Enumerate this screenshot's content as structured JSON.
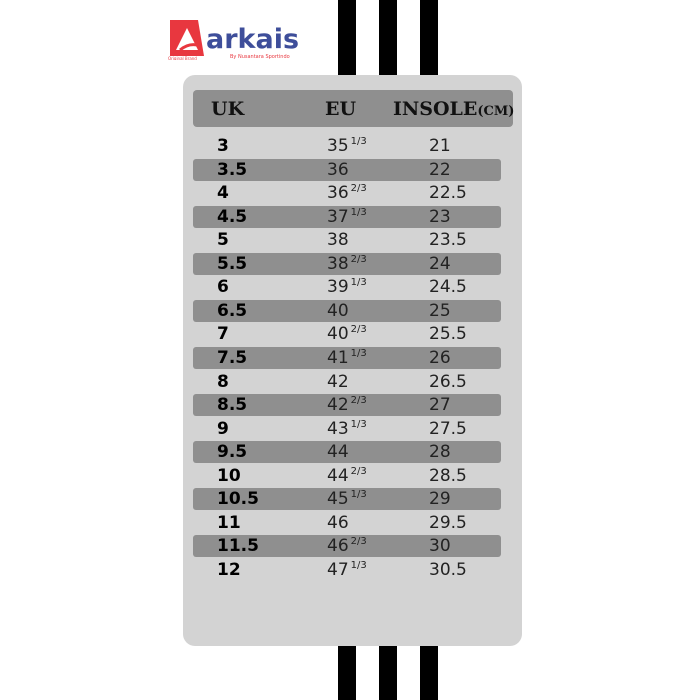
{
  "logo": {
    "name": "arkais",
    "tagline": "By Nusantara Sportindo",
    "subtext": "Original Brand",
    "colors": {
      "mark": "#e8373f",
      "text": "#3e4e9a"
    }
  },
  "header": {
    "uk": "UK",
    "eu": "EU",
    "insole": "INSOLE",
    "insole_unit": "(CM)"
  },
  "rows": [
    {
      "uk": "3",
      "eu": "35",
      "frac": "1/3",
      "insole": "21"
    },
    {
      "uk": "3.5",
      "eu": "36",
      "frac": "",
      "insole": "22"
    },
    {
      "uk": "4",
      "eu": "36",
      "frac": "2/3",
      "insole": "22.5"
    },
    {
      "uk": "4.5",
      "eu": "37",
      "frac": "1/3",
      "insole": "23"
    },
    {
      "uk": "5",
      "eu": "38",
      "frac": "",
      "insole": "23.5"
    },
    {
      "uk": "5.5",
      "eu": "38",
      "frac": "2/3",
      "insole": "24"
    },
    {
      "uk": "6",
      "eu": "39",
      "frac": "1/3",
      "insole": "24.5"
    },
    {
      "uk": "6.5",
      "eu": "40",
      "frac": "",
      "insole": "25"
    },
    {
      "uk": "7",
      "eu": "40",
      "frac": "2/3",
      "insole": "25.5"
    },
    {
      "uk": "7.5",
      "eu": "41",
      "frac": "1/3",
      "insole": "26"
    },
    {
      "uk": "8",
      "eu": "42",
      "frac": "",
      "insole": "26.5"
    },
    {
      "uk": "8.5",
      "eu": "42",
      "frac": "2/3",
      "insole": "27"
    },
    {
      "uk": "9",
      "eu": "43",
      "frac": "1/3",
      "insole": "27.5"
    },
    {
      "uk": "9.5",
      "eu": "44",
      "frac": "",
      "insole": "28"
    },
    {
      "uk": "10",
      "eu": "44",
      "frac": "2/3",
      "insole": "28.5"
    },
    {
      "uk": "10.5",
      "eu": "45",
      "frac": "1/3",
      "insole": "29"
    },
    {
      "uk": "11",
      "eu": "46",
      "frac": "",
      "insole": "29.5"
    },
    {
      "uk": "11.5",
      "eu": "46",
      "frac": "2/3",
      "insole": "30"
    },
    {
      "uk": "12",
      "eu": "47",
      "frac": "1/3",
      "insole": "30.5"
    }
  ]
}
